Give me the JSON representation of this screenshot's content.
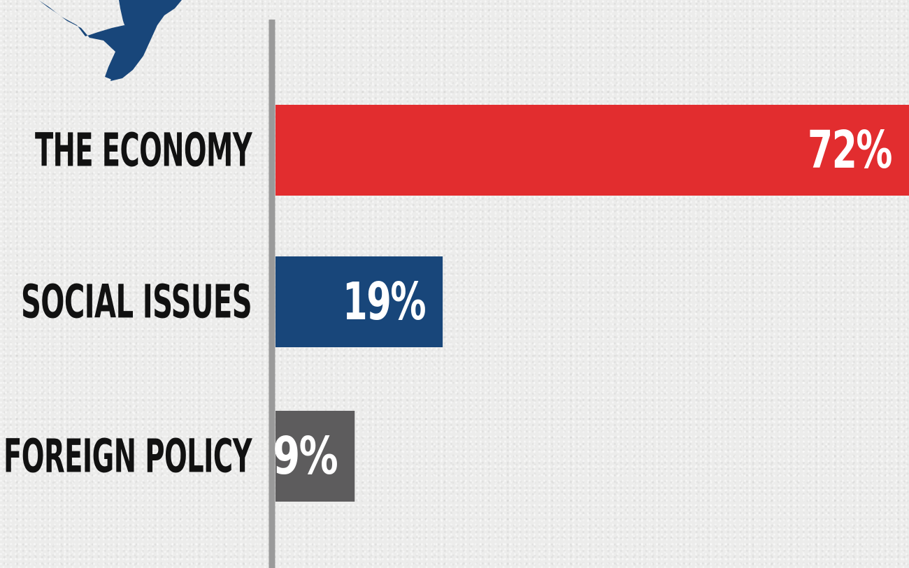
{
  "chart_data": {
    "type": "bar",
    "orientation": "horizontal",
    "categories": [
      "THE ECONOMY",
      "SOCIAL ISSUES",
      "FOREIGN POLICY"
    ],
    "values": [
      72,
      19,
      9
    ],
    "value_labels": [
      "72%",
      "19%",
      "9%"
    ],
    "colors": [
      "#e22d2f",
      "#18467a",
      "#5d5c5d"
    ],
    "xlim": [
      0,
      72
    ],
    "grid": false,
    "legend": "none"
  },
  "decor": {
    "map_icon": "texas-map-icon",
    "map_color": "#18467a",
    "axis_color": "#9a9a9a"
  }
}
